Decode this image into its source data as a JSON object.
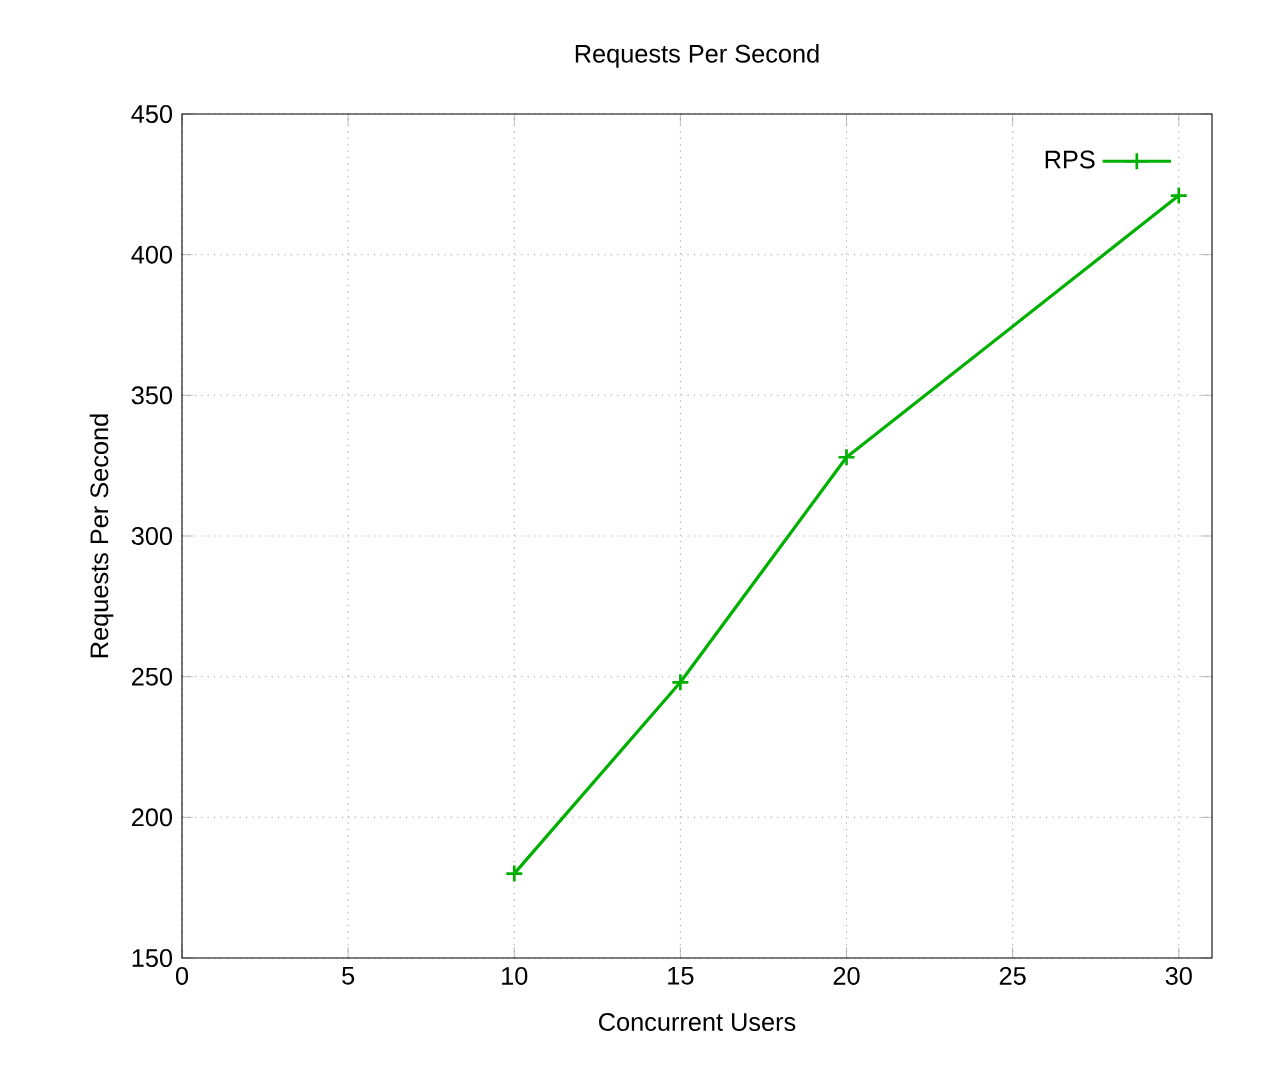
{
  "chart_data": {
    "type": "line",
    "title": "Requests Per Second",
    "xlabel": "Concurrent Users",
    "ylabel": "Requests Per Second",
    "x": [
      10,
      15,
      20,
      30
    ],
    "series": [
      {
        "name": "RPS",
        "color": "#00b000",
        "values": [
          180,
          248,
          328,
          421
        ]
      }
    ],
    "xlim": [
      0,
      31
    ],
    "xticks": [
      0,
      5,
      10,
      15,
      20,
      25,
      30
    ],
    "ylim": [
      150,
      450
    ],
    "yticks": [
      150,
      200,
      250,
      300,
      350,
      400,
      450
    ],
    "grid": true,
    "legend": "top right",
    "marker": "cross",
    "line_style": "solid"
  }
}
